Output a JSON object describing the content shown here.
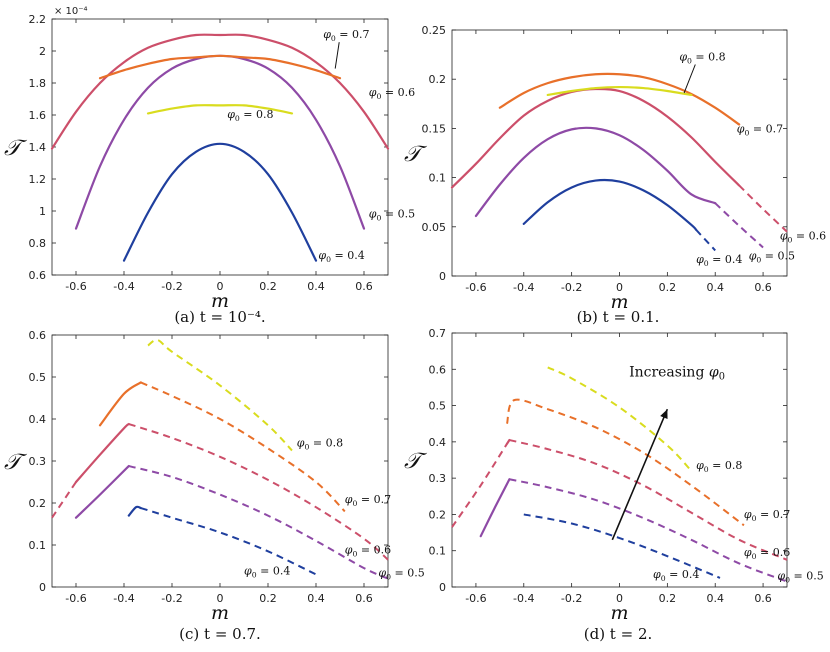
{
  "colors": {
    "phi_0.4": "#1f3f9e",
    "phi_0.5": "#8e4aa6",
    "phi_0.6": "#cc4f6a",
    "phi_0.7": "#e8702a",
    "phi_0.8": "#d9dc1e"
  },
  "chart_data": [
    {
      "id": "a",
      "type": "line",
      "caption": "(a) t = 10⁻⁴.",
      "xlabel": "m",
      "ylabel": "𝒯",
      "xlim": [
        -0.7,
        0.7
      ],
      "ylim": [
        0.6,
        2.2
      ],
      "yscale_label": "× 10⁻⁴",
      "xticks": [
        "-0.6",
        "-0.4",
        "-0.2",
        "0",
        "0.2",
        "0.4",
        "0.6"
      ],
      "yticks": [
        "0.6",
        "0.8",
        "1",
        "1.2",
        "1.4",
        "1.6",
        "1.8",
        "2",
        "2.2"
      ],
      "ytick_values": [
        0.6,
        0.8,
        1.0,
        1.2,
        1.4,
        1.6,
        1.8,
        2.0,
        2.2
      ],
      "series": [
        {
          "name": "φ₀ = 0.4",
          "phi": 0.4,
          "solid": {
            "x": [
              -0.4,
              -0.3,
              -0.2,
              -0.1,
              0,
              0.1,
              0.2,
              0.3,
              0.4
            ],
            "y": [
              0.69,
              0.99,
              1.23,
              1.37,
              1.42,
              1.37,
              1.23,
              0.99,
              0.69
            ]
          },
          "dashed": null
        },
        {
          "name": "φ₀ = 0.5",
          "phi": 0.5,
          "solid": {
            "x": [
              -0.6,
              -0.5,
              -0.4,
              -0.3,
              -0.2,
              -0.1,
              0,
              0.1,
              0.2,
              0.3,
              0.4,
              0.5,
              0.6
            ],
            "y": [
              0.89,
              1.28,
              1.57,
              1.77,
              1.89,
              1.95,
              1.97,
              1.95,
              1.89,
              1.77,
              1.57,
              1.28,
              0.89
            ]
          },
          "dashed": null
        },
        {
          "name": "φ₀ = 0.6",
          "phi": 0.6,
          "solid": {
            "x": [
              -0.7,
              -0.6,
              -0.5,
              -0.4,
              -0.3,
              -0.2,
              -0.1,
              0,
              0.1,
              0.2,
              0.3,
              0.4,
              0.5,
              0.6,
              0.7
            ],
            "y": [
              1.39,
              1.62,
              1.8,
              1.93,
              2.02,
              2.07,
              2.1,
              2.1,
              2.1,
              2.07,
              2.02,
              1.93,
              1.8,
              1.62,
              1.39
            ]
          },
          "dashed": null
        },
        {
          "name": "φ₀ = 0.7",
          "phi": 0.7,
          "solid": {
            "x": [
              -0.5,
              -0.4,
              -0.3,
              -0.2,
              -0.1,
              0,
              0.1,
              0.2,
              0.3,
              0.4,
              0.5
            ],
            "y": [
              1.83,
              1.88,
              1.92,
              1.95,
              1.96,
              1.97,
              1.96,
              1.95,
              1.92,
              1.88,
              1.83
            ]
          },
          "dashed": null
        },
        {
          "name": "φ₀ = 0.8",
          "phi": 0.8,
          "solid": {
            "x": [
              -0.3,
              -0.2,
              -0.1,
              0,
              0.1,
              0.2,
              0.3
            ],
            "y": [
              1.61,
              1.64,
              1.66,
              1.66,
              1.66,
              1.64,
              1.61
            ]
          },
          "dashed": null
        }
      ],
      "annotations": [
        {
          "text": "φ₀ = 0.7",
          "x": 0.43,
          "y": 2.08,
          "pointer": [
            0.48,
            1.89
          ]
        },
        {
          "text": "φ₀ = 0.6",
          "x": 0.62,
          "y": 1.72,
          "pointer": null
        },
        {
          "text": "φ₀ = 0.8",
          "x": 0.03,
          "y": 1.58,
          "pointer": null
        },
        {
          "text": "φ₀ = 0.5",
          "x": 0.62,
          "y": 0.96,
          "pointer": null
        },
        {
          "text": "φ₀ = 0.4",
          "x": 0.41,
          "y": 0.7,
          "pointer": null
        }
      ]
    },
    {
      "id": "b",
      "type": "line",
      "caption": "(b) t = 0.1.",
      "xlabel": "m",
      "ylabel": "𝒯",
      "xlim": [
        -0.7,
        0.7
      ],
      "ylim": [
        0,
        0.25
      ],
      "yscale_label": "",
      "xticks": [
        "-0.6",
        "-0.4",
        "-0.2",
        "0",
        "0.2",
        "0.4",
        "0.6"
      ],
      "yticks": [
        "0",
        "0.05",
        "0.1",
        "0.15",
        "0.2",
        "0.25"
      ],
      "ytick_values": [
        0,
        0.05,
        0.1,
        0.15,
        0.2,
        0.25
      ],
      "series": [
        {
          "name": "φ₀ = 0.4",
          "phi": 0.4,
          "solid": {
            "x": [
              -0.4,
              -0.3,
              -0.2,
              -0.1,
              0,
              0.1,
              0.2,
              0.3,
              0.32
            ],
            "y": [
              0.053,
              0.075,
              0.09,
              0.097,
              0.096,
              0.087,
              0.072,
              0.052,
              0.047
            ]
          },
          "dashed": {
            "x": [
              0.32,
              0.4
            ],
            "y": [
              0.047,
              0.026
            ]
          }
        },
        {
          "name": "φ₀ = 0.5",
          "phi": 0.5,
          "solid": {
            "x": [
              -0.6,
              -0.5,
              -0.4,
              -0.3,
              -0.2,
              -0.1,
              0,
              0.1,
              0.2,
              0.3,
              0.4
            ],
            "y": [
              0.061,
              0.093,
              0.12,
              0.139,
              0.149,
              0.15,
              0.143,
              0.128,
              0.107,
              0.083,
              0.074
            ]
          },
          "dashed": {
            "x": [
              0.4,
              0.5,
              0.6
            ],
            "y": [
              0.074,
              0.051,
              0.029
            ]
          }
        },
        {
          "name": "φ₀ = 0.6",
          "phi": 0.6,
          "solid": {
            "x": [
              -0.7,
              -0.6,
              -0.5,
              -0.4,
              -0.3,
              -0.2,
              -0.1,
              0,
              0.1,
              0.2,
              0.3,
              0.4,
              0.5
            ],
            "y": [
              0.09,
              0.114,
              0.14,
              0.163,
              0.178,
              0.187,
              0.19,
              0.188,
              0.178,
              0.162,
              0.141,
              0.116,
              0.092
            ]
          },
          "dashed": {
            "x": [
              0.5,
              0.6,
              0.7
            ],
            "y": [
              0.092,
              0.068,
              0.045
            ]
          }
        },
        {
          "name": "φ₀ = 0.7",
          "phi": 0.7,
          "solid": {
            "x": [
              -0.5,
              -0.4,
              -0.3,
              -0.2,
              -0.1,
              0,
              0.1,
              0.2,
              0.3,
              0.4,
              0.5
            ],
            "y": [
              0.171,
              0.186,
              0.196,
              0.202,
              0.205,
              0.205,
              0.202,
              0.195,
              0.185,
              0.171,
              0.154
            ]
          },
          "dashed": null
        },
        {
          "name": "φ₀ = 0.8",
          "phi": 0.8,
          "solid": {
            "x": [
              -0.3,
              -0.2,
              -0.1,
              0,
              0.1,
              0.2,
              0.3
            ],
            "y": [
              0.184,
              0.188,
              0.191,
              0.192,
              0.191,
              0.188,
              0.184
            ]
          },
          "dashed": null
        }
      ],
      "annotations": [
        {
          "text": "φ₀ = 0.8",
          "x": 0.25,
          "y": 0.219,
          "pointer": [
            0.27,
            0.186
          ]
        },
        {
          "text": "φ₀ = 0.7",
          "x": 0.49,
          "y": 0.146,
          "pointer": null
        },
        {
          "text": "φ₀ = 0.6",
          "x": 0.67,
          "y": 0.037,
          "pointer": null
        },
        {
          "text": "φ₀ = 0.5",
          "x": 0.54,
          "y": 0.017,
          "pointer": null
        },
        {
          "text": "φ₀ = 0.4",
          "x": 0.32,
          "y": 0.013,
          "pointer": null
        }
      ]
    },
    {
      "id": "c",
      "type": "line",
      "caption": "(c) t = 0.7.",
      "xlabel": "m",
      "ylabel": "𝒯",
      "xlim": [
        -0.7,
        0.7
      ],
      "ylim": [
        0,
        0.6
      ],
      "yscale_label": "",
      "xticks": [
        "-0.6",
        "-0.4",
        "-0.2",
        "0",
        "0.2",
        "0.4",
        "0.6"
      ],
      "yticks": [
        "0",
        "0.1",
        "0.2",
        "0.3",
        "0.4",
        "0.5",
        "0.6"
      ],
      "ytick_values": [
        0,
        0.1,
        0.2,
        0.3,
        0.4,
        0.5,
        0.6
      ],
      "series": [
        {
          "name": "φ₀ = 0.4",
          "phi": 0.4,
          "solid": {
            "x": [
              -0.38,
              -0.35,
              -0.33
            ],
            "y": [
              0.17,
              0.19,
              0.188
            ]
          },
          "dashed": {
            "x": [
              -0.33,
              -0.2,
              0,
              0.2,
              0.4
            ],
            "y": [
              0.188,
              0.165,
              0.13,
              0.085,
              0.03
            ]
          }
        },
        {
          "name": "φ₀ = 0.5",
          "phi": 0.5,
          "solid": {
            "x": [
              -0.6,
              -0.5,
              -0.38
            ],
            "y": [
              0.165,
              0.22,
              0.288
            ]
          },
          "dashed": {
            "x": [
              -0.38,
              -0.2,
              0,
              0.2,
              0.4,
              0.6,
              0.7
            ],
            "y": [
              0.288,
              0.262,
              0.22,
              0.17,
              0.11,
              0.045,
              0.02
            ]
          }
        },
        {
          "name": "φ₀ = 0.6",
          "phi": 0.6,
          "solid": {
            "x": [
              -0.6,
              -0.5,
              -0.4,
              -0.38
            ],
            "y": [
              0.25,
              0.315,
              0.378,
              0.388
            ]
          },
          "dashed": {
            "x": [
              -0.7,
              -0.6
            ],
            "y": [
              0.165,
              0.25
            ],
            "x2": [
              -0.38,
              -0.2,
              0,
              0.2,
              0.4,
              0.6,
              0.7
            ],
            "y2": [
              0.388,
              0.355,
              0.31,
              0.255,
              0.19,
              0.115,
              0.065
            ]
          }
        },
        {
          "name": "φ₀ = 0.7",
          "phi": 0.7,
          "solid": {
            "x": [
              -0.5,
              -0.4,
              -0.33
            ],
            "y": [
              0.385,
              0.46,
              0.487
            ]
          },
          "dashed": {
            "x": [
              -0.33,
              -0.2,
              0,
              0.2,
              0.4,
              0.52
            ],
            "y": [
              0.487,
              0.455,
              0.4,
              0.33,
              0.25,
              0.18
            ]
          }
        },
        {
          "name": "φ₀ = 0.8",
          "phi": 0.8,
          "solid": null,
          "dashed": {
            "x": [
              -0.3,
              -0.26,
              -0.2,
              0,
              0.2,
              0.3
            ],
            "y": [
              0.575,
              0.588,
              0.56,
              0.48,
              0.385,
              0.325
            ]
          }
        }
      ],
      "annotations": [
        {
          "text": "φ₀ = 0.8",
          "x": 0.32,
          "y": 0.335,
          "pointer": null
        },
        {
          "text": "φ₀ = 0.7",
          "x": 0.52,
          "y": 0.2,
          "pointer": null
        },
        {
          "text": "φ₀ = 0.6",
          "x": 0.52,
          "y": 0.08,
          "pointer": null
        },
        {
          "text": "φ₀ = 0.5",
          "x": 0.66,
          "y": 0.025,
          "pointer": null
        },
        {
          "text": "φ₀ = 0.4",
          "x": 0.1,
          "y": 0.03,
          "pointer": null
        }
      ]
    },
    {
      "id": "d",
      "type": "line",
      "caption": "(d) t = 2.",
      "xlabel": "m",
      "ylabel": "𝒯",
      "xlim": [
        -0.7,
        0.7
      ],
      "ylim": [
        0,
        0.7
      ],
      "yscale_label": "",
      "xticks": [
        "-0.6",
        "-0.4",
        "-0.2",
        "0",
        "0.2",
        "0.4",
        "0.6"
      ],
      "yticks": [
        "0",
        "0.1",
        "0.2",
        "0.3",
        "0.4",
        "0.5",
        "0.6",
        "0.7"
      ],
      "ytick_values": [
        0,
        0.1,
        0.2,
        0.3,
        0.4,
        0.5,
        0.6,
        0.7
      ],
      "series": [
        {
          "name": "φ₀ = 0.4",
          "phi": 0.4,
          "solid": null,
          "dashed": {
            "x": [
              -0.4,
              -0.2,
              0,
              0.2,
              0.42
            ],
            "y": [
              0.2,
              0.175,
              0.135,
              0.085,
              0.025
            ]
          }
        },
        {
          "name": "φ₀ = 0.5",
          "phi": 0.5,
          "solid": {
            "x": [
              -0.58,
              -0.52,
              -0.46
            ],
            "y": [
              0.14,
              0.22,
              0.297
            ]
          },
          "dashed": {
            "x": [
              -0.46,
              -0.3,
              -0.1,
              0.1,
              0.3,
              0.5,
              0.7
            ],
            "y": [
              0.297,
              0.275,
              0.24,
              0.19,
              0.13,
              0.065,
              0.015
            ]
          }
        },
        {
          "name": "φ₀ = 0.6",
          "phi": 0.6,
          "solid": {
            "x": [
              -0.47,
              -0.46
            ],
            "y": [
              0.395,
              0.405
            ]
          },
          "dashed": {
            "x": [
              -0.7,
              -0.58,
              -0.47
            ],
            "y": [
              0.165,
              0.28,
              0.395
            ],
            "x2": [
              -0.46,
              -0.3,
              -0.1,
              0.1,
              0.3,
              0.5,
              0.7
            ],
            "y2": [
              0.405,
              0.38,
              0.34,
              0.28,
              0.205,
              0.13,
              0.075
            ]
          }
        },
        {
          "name": "φ₀ = 0.7",
          "phi": 0.7,
          "solid": null,
          "dashed": {
            "x": [
              -0.47,
              -0.44,
              -0.3,
              -0.1,
              0.1,
              0.3,
              0.52
            ],
            "y": [
              0.45,
              0.515,
              0.49,
              0.44,
              0.37,
              0.28,
              0.17
            ]
          }
        },
        {
          "name": "φ₀ = 0.8",
          "phi": 0.8,
          "solid": null,
          "dashed": {
            "x": [
              -0.3,
              -0.2,
              0,
              0.2,
              0.3
            ],
            "y": [
              0.605,
              0.575,
              0.495,
              0.39,
              0.32
            ]
          }
        }
      ],
      "annotations": [
        {
          "text": "φ₀ = 0.8",
          "x": 0.32,
          "y": 0.325,
          "pointer": null
        },
        {
          "text": "φ₀ = 0.7",
          "x": 0.52,
          "y": 0.19,
          "pointer": null
        },
        {
          "text": "φ₀ = 0.6",
          "x": 0.52,
          "y": 0.085,
          "pointer": null
        },
        {
          "text": "φ₀ = 0.5",
          "x": 0.66,
          "y": 0.02,
          "pointer": null
        },
        {
          "text": "φ₀ = 0.4",
          "x": 0.14,
          "y": 0.025,
          "pointer": null
        }
      ],
      "arrow": {
        "text": "Increasing φ₀",
        "from": [
          -0.03,
          0.13
        ],
        "to": [
          0.2,
          0.49
        ],
        "text_x": 0.04,
        "text_y": 0.58
      }
    }
  ]
}
